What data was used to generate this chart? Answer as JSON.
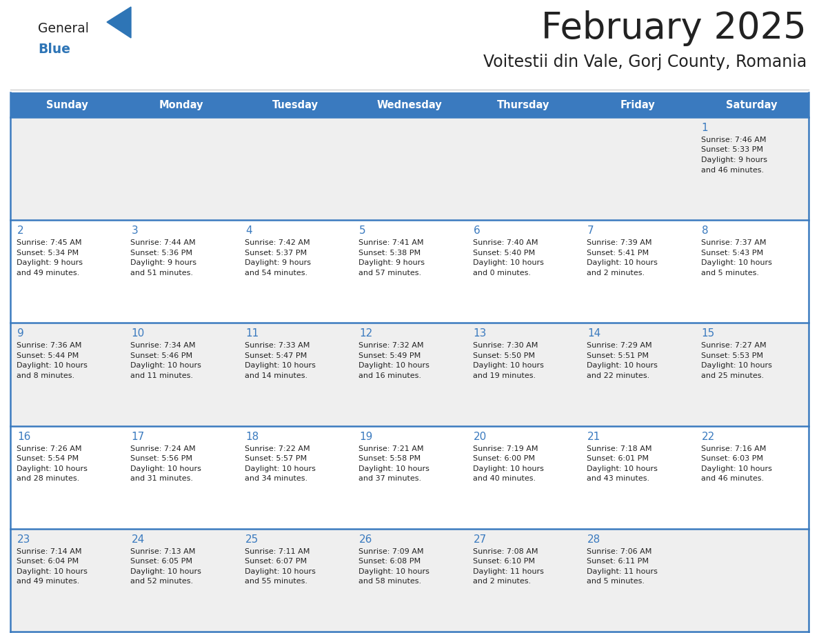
{
  "title": "February 2025",
  "subtitle": "Voitestii din Vale, Gorj County, Romania",
  "days_of_week": [
    "Sunday",
    "Monday",
    "Tuesday",
    "Wednesday",
    "Thursday",
    "Friday",
    "Saturday"
  ],
  "header_bg": "#3A7ABF",
  "header_text": "#FFFFFF",
  "cell_bg_odd": "#EFEFEF",
  "cell_bg_even": "#FFFFFF",
  "border_color": "#3A7ABF",
  "day_number_color": "#3A7ABF",
  "text_color": "#222222",
  "title_color": "#222222",
  "logo_general_color": "#222222",
  "logo_blue_color": "#2E75B6",
  "calendar": [
    [
      {
        "day": null,
        "sunrise": null,
        "sunset": null,
        "daylight_line1": null,
        "daylight_line2": null
      },
      {
        "day": null,
        "sunrise": null,
        "sunset": null,
        "daylight_line1": null,
        "daylight_line2": null
      },
      {
        "day": null,
        "sunrise": null,
        "sunset": null,
        "daylight_line1": null,
        "daylight_line2": null
      },
      {
        "day": null,
        "sunrise": null,
        "sunset": null,
        "daylight_line1": null,
        "daylight_line2": null
      },
      {
        "day": null,
        "sunrise": null,
        "sunset": null,
        "daylight_line1": null,
        "daylight_line2": null
      },
      {
        "day": null,
        "sunrise": null,
        "sunset": null,
        "daylight_line1": null,
        "daylight_line2": null
      },
      {
        "day": 1,
        "sunrise": "7:46 AM",
        "sunset": "5:33 PM",
        "daylight_line1": "Daylight: 9 hours",
        "daylight_line2": "and 46 minutes."
      }
    ],
    [
      {
        "day": 2,
        "sunrise": "7:45 AM",
        "sunset": "5:34 PM",
        "daylight_line1": "Daylight: 9 hours",
        "daylight_line2": "and 49 minutes."
      },
      {
        "day": 3,
        "sunrise": "7:44 AM",
        "sunset": "5:36 PM",
        "daylight_line1": "Daylight: 9 hours",
        "daylight_line2": "and 51 minutes."
      },
      {
        "day": 4,
        "sunrise": "7:42 AM",
        "sunset": "5:37 PM",
        "daylight_line1": "Daylight: 9 hours",
        "daylight_line2": "and 54 minutes."
      },
      {
        "day": 5,
        "sunrise": "7:41 AM",
        "sunset": "5:38 PM",
        "daylight_line1": "Daylight: 9 hours",
        "daylight_line2": "and 57 minutes."
      },
      {
        "day": 6,
        "sunrise": "7:40 AM",
        "sunset": "5:40 PM",
        "daylight_line1": "Daylight: 10 hours",
        "daylight_line2": "and 0 minutes."
      },
      {
        "day": 7,
        "sunrise": "7:39 AM",
        "sunset": "5:41 PM",
        "daylight_line1": "Daylight: 10 hours",
        "daylight_line2": "and 2 minutes."
      },
      {
        "day": 8,
        "sunrise": "7:37 AM",
        "sunset": "5:43 PM",
        "daylight_line1": "Daylight: 10 hours",
        "daylight_line2": "and 5 minutes."
      }
    ],
    [
      {
        "day": 9,
        "sunrise": "7:36 AM",
        "sunset": "5:44 PM",
        "daylight_line1": "Daylight: 10 hours",
        "daylight_line2": "and 8 minutes."
      },
      {
        "day": 10,
        "sunrise": "7:34 AM",
        "sunset": "5:46 PM",
        "daylight_line1": "Daylight: 10 hours",
        "daylight_line2": "and 11 minutes."
      },
      {
        "day": 11,
        "sunrise": "7:33 AM",
        "sunset": "5:47 PM",
        "daylight_line1": "Daylight: 10 hours",
        "daylight_line2": "and 14 minutes."
      },
      {
        "day": 12,
        "sunrise": "7:32 AM",
        "sunset": "5:49 PM",
        "daylight_line1": "Daylight: 10 hours",
        "daylight_line2": "and 16 minutes."
      },
      {
        "day": 13,
        "sunrise": "7:30 AM",
        "sunset": "5:50 PM",
        "daylight_line1": "Daylight: 10 hours",
        "daylight_line2": "and 19 minutes."
      },
      {
        "day": 14,
        "sunrise": "7:29 AM",
        "sunset": "5:51 PM",
        "daylight_line1": "Daylight: 10 hours",
        "daylight_line2": "and 22 minutes."
      },
      {
        "day": 15,
        "sunrise": "7:27 AM",
        "sunset": "5:53 PM",
        "daylight_line1": "Daylight: 10 hours",
        "daylight_line2": "and 25 minutes."
      }
    ],
    [
      {
        "day": 16,
        "sunrise": "7:26 AM",
        "sunset": "5:54 PM",
        "daylight_line1": "Daylight: 10 hours",
        "daylight_line2": "and 28 minutes."
      },
      {
        "day": 17,
        "sunrise": "7:24 AM",
        "sunset": "5:56 PM",
        "daylight_line1": "Daylight: 10 hours",
        "daylight_line2": "and 31 minutes."
      },
      {
        "day": 18,
        "sunrise": "7:22 AM",
        "sunset": "5:57 PM",
        "daylight_line1": "Daylight: 10 hours",
        "daylight_line2": "and 34 minutes."
      },
      {
        "day": 19,
        "sunrise": "7:21 AM",
        "sunset": "5:58 PM",
        "daylight_line1": "Daylight: 10 hours",
        "daylight_line2": "and 37 minutes."
      },
      {
        "day": 20,
        "sunrise": "7:19 AM",
        "sunset": "6:00 PM",
        "daylight_line1": "Daylight: 10 hours",
        "daylight_line2": "and 40 minutes."
      },
      {
        "day": 21,
        "sunrise": "7:18 AM",
        "sunset": "6:01 PM",
        "daylight_line1": "Daylight: 10 hours",
        "daylight_line2": "and 43 minutes."
      },
      {
        "day": 22,
        "sunrise": "7:16 AM",
        "sunset": "6:03 PM",
        "daylight_line1": "Daylight: 10 hours",
        "daylight_line2": "and 46 minutes."
      }
    ],
    [
      {
        "day": 23,
        "sunrise": "7:14 AM",
        "sunset": "6:04 PM",
        "daylight_line1": "Daylight: 10 hours",
        "daylight_line2": "and 49 minutes."
      },
      {
        "day": 24,
        "sunrise": "7:13 AM",
        "sunset": "6:05 PM",
        "daylight_line1": "Daylight: 10 hours",
        "daylight_line2": "and 52 minutes."
      },
      {
        "day": 25,
        "sunrise": "7:11 AM",
        "sunset": "6:07 PM",
        "daylight_line1": "Daylight: 10 hours",
        "daylight_line2": "and 55 minutes."
      },
      {
        "day": 26,
        "sunrise": "7:09 AM",
        "sunset": "6:08 PM",
        "daylight_line1": "Daylight: 10 hours",
        "daylight_line2": "and 58 minutes."
      },
      {
        "day": 27,
        "sunrise": "7:08 AM",
        "sunset": "6:10 PM",
        "daylight_line1": "Daylight: 11 hours",
        "daylight_line2": "and 2 minutes."
      },
      {
        "day": 28,
        "sunrise": "7:06 AM",
        "sunset": "6:11 PM",
        "daylight_line1": "Daylight: 11 hours",
        "daylight_line2": "and 5 minutes."
      },
      {
        "day": null,
        "sunrise": null,
        "sunset": null,
        "daylight_line1": null,
        "daylight_line2": null
      }
    ]
  ]
}
